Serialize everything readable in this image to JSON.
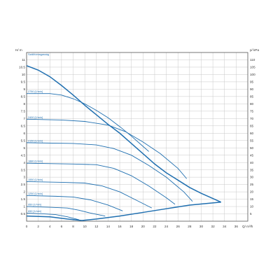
{
  "chart_data": {
    "type": "line",
    "title": "Szállítómagasság",
    "x_unit": "Q/ m³/h",
    "y_left_unit": "H/ m",
    "y_right_unit": "p/ kPa",
    "xlim": [
      0,
      38
    ],
    "ylim_left": [
      0,
      11.5
    ],
    "ylim_right": [
      0,
      115
    ],
    "x_ticks": [
      0,
      2,
      4,
      6,
      8,
      10,
      12,
      14,
      16,
      18,
      20,
      22,
      24,
      26,
      28,
      30,
      32,
      34,
      36
    ],
    "y_left_ticks": [
      0.5,
      1,
      1.5,
      2,
      2.5,
      3,
      3.5,
      4,
      4.5,
      5,
      5.5,
      6,
      6.5,
      7,
      7.5,
      8,
      8.5,
      9,
      9.5,
      10,
      10.5,
      11
    ],
    "y_right_ticks": [
      5,
      10,
      15,
      20,
      25,
      30,
      35,
      40,
      45,
      50,
      55,
      60,
      65,
      70,
      75,
      80,
      85,
      90,
      95,
      100,
      105,
      110
    ],
    "grid": true,
    "color": "#1f6fb0",
    "max_curve": {
      "points": [
        [
          0,
          10.6
        ],
        [
          2,
          10.3
        ],
        [
          4,
          9.85
        ],
        [
          6,
          9.25
        ],
        [
          8,
          8.6
        ],
        [
          10,
          7.9
        ],
        [
          12,
          7.25
        ],
        [
          14,
          6.6
        ],
        [
          16,
          6.0
        ],
        [
          18,
          5.3
        ],
        [
          20,
          4.6
        ],
        [
          22,
          3.9
        ],
        [
          24,
          3.3
        ],
        [
          26,
          2.8
        ],
        [
          28,
          2.3
        ],
        [
          30,
          1.9
        ],
        [
          32,
          1.55
        ],
        [
          33.4,
          1.3
        ]
      ]
    },
    "min_curve": {
      "points": [
        [
          0,
          0.35
        ],
        [
          4,
          0.3
        ],
        [
          7,
          0.15
        ],
        [
          9.5,
          0.05
        ],
        [
          12,
          0.15
        ],
        [
          16,
          0.35
        ],
        [
          20,
          0.6
        ],
        [
          24,
          0.85
        ],
        [
          28,
          1.1
        ],
        [
          33.4,
          1.3
        ]
      ]
    },
    "series": [
      {
        "name": "2750 [1/min]",
        "points": [
          [
            0,
            8.7
          ],
          [
            4,
            8.7
          ],
          [
            6,
            8.6
          ],
          [
            8,
            8.35
          ],
          [
            10,
            8.0
          ],
          [
            12,
            7.55
          ],
          [
            14,
            7.05
          ],
          [
            16,
            6.45
          ],
          [
            18,
            5.8
          ],
          [
            20,
            5.1
          ],
          [
            21,
            4.75
          ]
        ]
      },
      {
        "name": "2400 [1/min]",
        "points": [
          [
            0,
            6.95
          ],
          [
            6,
            6.9
          ],
          [
            10,
            6.8
          ],
          [
            14,
            6.55
          ],
          [
            17,
            6.1
          ],
          [
            20,
            5.4
          ],
          [
            23,
            4.6
          ],
          [
            26,
            3.6
          ],
          [
            27.5,
            2.9
          ]
        ]
      },
      {
        "name": "2150 [1/min]",
        "points": [
          [
            0,
            5.35
          ],
          [
            8,
            5.3
          ],
          [
            12,
            5.2
          ],
          [
            15,
            4.95
          ],
          [
            18,
            4.5
          ],
          [
            21,
            3.8
          ],
          [
            24,
            3.0
          ],
          [
            27,
            2.0
          ],
          [
            28.5,
            1.35
          ]
        ]
      },
      {
        "name": "1880 [1/min]",
        "points": [
          [
            0,
            3.95
          ],
          [
            8,
            3.9
          ],
          [
            12,
            3.85
          ],
          [
            15,
            3.6
          ],
          [
            18,
            3.1
          ],
          [
            21,
            2.4
          ],
          [
            24,
            1.6
          ],
          [
            25.5,
            1.15
          ]
        ]
      },
      {
        "name": "1550 [1/min]",
        "points": [
          [
            0,
            2.7
          ],
          [
            6,
            2.65
          ],
          [
            10,
            2.6
          ],
          [
            13,
            2.4
          ],
          [
            16,
            2.0
          ],
          [
            19,
            1.4
          ],
          [
            21.5,
            0.9
          ]
        ]
      },
      {
        "name": "1250 [1/min]",
        "points": [
          [
            0,
            1.75
          ],
          [
            5,
            1.7
          ],
          [
            8,
            1.65
          ],
          [
            11,
            1.45
          ],
          [
            14,
            1.1
          ],
          [
            16.5,
            0.7
          ]
        ]
      },
      {
        "name": "950 [1/min]",
        "points": [
          [
            0,
            1.0
          ],
          [
            4,
            0.95
          ],
          [
            7,
            0.9
          ],
          [
            9,
            0.75
          ],
          [
            11,
            0.55
          ],
          [
            13.5,
            0.35
          ]
        ]
      },
      {
        "name": "650 [1/min]",
        "points": [
          [
            0,
            0.55
          ],
          [
            3,
            0.5
          ],
          [
            5,
            0.45
          ],
          [
            7,
            0.3
          ],
          [
            9,
            0.1
          ]
        ]
      }
    ]
  }
}
